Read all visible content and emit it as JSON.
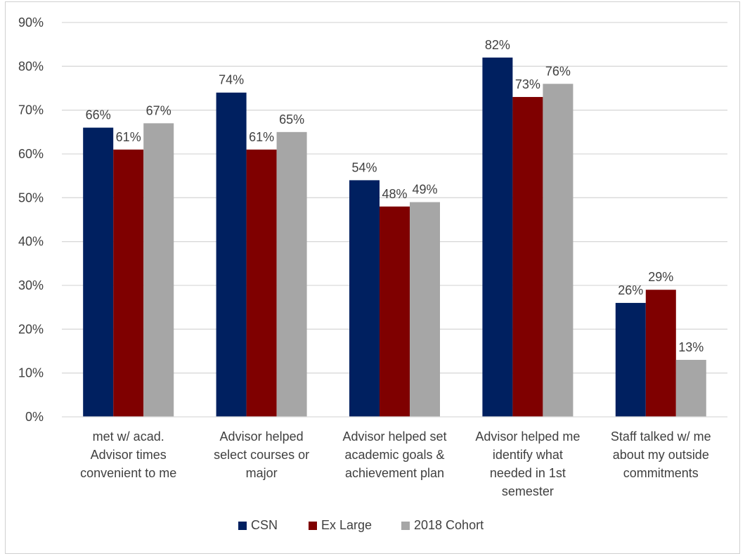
{
  "chart_data": {
    "type": "bar",
    "categories": [
      [
        "met w/ acad.",
        "Advisor times",
        "convenient to me"
      ],
      [
        "Advisor helped",
        "select courses or",
        "major"
      ],
      [
        "Advisor helped set",
        "academic goals &",
        "achievement plan"
      ],
      [
        "Advisor helped me",
        "identify what",
        "needed in 1st",
        "semester"
      ],
      [
        "Staff talked w/  me",
        "about my outside",
        "commitments"
      ]
    ],
    "series": [
      {
        "name": "CSN",
        "color": "#002060",
        "values": [
          66,
          74,
          54,
          82,
          26
        ],
        "labels": [
          "66%",
          "74%",
          "54%",
          "82%",
          "26%"
        ]
      },
      {
        "name": "Ex Large",
        "color": "#7F0000",
        "values": [
          61,
          61,
          48,
          73,
          29
        ],
        "labels": [
          "61%",
          "61%",
          "48%",
          "73%",
          "29%"
        ]
      },
      {
        "name": "2018 Cohort",
        "color": "#A6A6A6",
        "values": [
          67,
          65,
          49,
          76,
          13
        ],
        "labels": [
          "67%",
          "65%",
          "49%",
          "76%",
          "13%"
        ]
      }
    ],
    "ylim": [
      0,
      90
    ],
    "yticks": [
      0,
      10,
      20,
      30,
      40,
      50,
      60,
      70,
      80,
      90
    ],
    "ytick_labels": [
      "0%",
      "10%",
      "20%",
      "30%",
      "40%",
      "50%",
      "60%",
      "70%",
      "80%",
      "90%"
    ],
    "grid": true,
    "legend_position": "bottom"
  }
}
